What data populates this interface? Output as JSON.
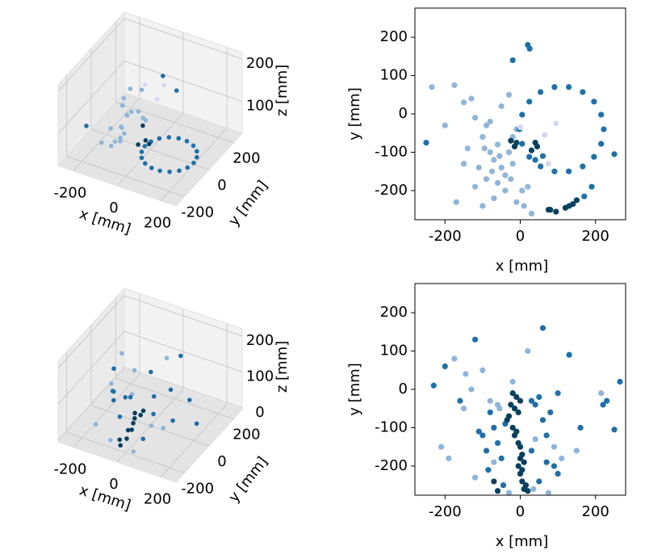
{
  "chart_data": [
    {
      "type": "scatter3d",
      "xlabel": "x [mm]",
      "ylabel": "y [mm]",
      "zlabel": "z [mm]",
      "xlim": [
        -270,
        270
      ],
      "ylim": [
        -270,
        270
      ],
      "zlim": [
        25,
        215
      ],
      "xticks": [
        -200,
        0,
        200
      ],
      "yticks": [
        -200,
        0,
        200
      ],
      "zticks": [
        100,
        200
      ],
      "grid": true,
      "series": [
        {
          "color": "#8fb5d9",
          "x": [
            -150,
            -120,
            -100,
            -80,
            -60,
            -40,
            -20,
            -100,
            -60,
            -30,
            -130,
            -90,
            -50,
            -10,
            -70,
            -160,
            -110,
            -40,
            -80,
            -20
          ],
          "y": [
            40,
            -10,
            -60,
            -100,
            -80,
            -140,
            -60,
            -140,
            -180,
            -100,
            -90,
            -30,
            20,
            -40,
            -120,
            70,
            -200,
            -160,
            -20,
            0
          ],
          "z": [
            90,
            110,
            80,
            70,
            120,
            100,
            130,
            60,
            90,
            140,
            80,
            100,
            150,
            110,
            70,
            95,
            85,
            120,
            160,
            90
          ]
        },
        {
          "color": "#1f6fa8",
          "x": [
            222,
            215,
            196,
            166,
            129,
            91,
            54,
            24,
            5,
            -2,
            5,
            24,
            54,
            91,
            129,
            166,
            196,
            215,
            20,
            -20,
            -250
          ],
          "y": [
            -40,
            -2,
            32,
            57,
            70,
            70,
            57,
            32,
            -2,
            -40,
            -78,
            -112,
            -137,
            -150,
            -150,
            -137,
            -112,
            -78,
            180,
            140,
            -75
          ],
          "z": [
            45,
            45,
            45,
            45,
            45,
            45,
            45,
            45,
            45,
            45,
            45,
            45,
            45,
            45,
            45,
            45,
            45,
            45,
            110,
            150,
            60
          ]
        },
        {
          "color": "#08405f",
          "x": [
            -10,
            40,
            30,
            0
          ],
          "y": [
            -80,
            -80,
            -90,
            -60
          ],
          "z": [
            60,
            70,
            80,
            100
          ]
        },
        {
          "color": "#d5d8ee",
          "x": [
            0,
            60,
            80
          ],
          "y": [
            -40,
            -50,
            -30
          ],
          "z": [
            190,
            170,
            200
          ]
        }
      ]
    },
    {
      "type": "scatter",
      "xlabel": "x [mm]",
      "ylabel": "y [mm]",
      "xlim": [
        -280,
        280
      ],
      "ylim": [
        -276,
        276
      ],
      "xticks": [
        -200,
        0,
        200
      ],
      "yticks": [
        -200,
        -100,
        0,
        100,
        200
      ],
      "series": [
        {
          "color": "#8fb5d9",
          "x": [
            -235,
            -175,
            -150,
            -130,
            -120,
            -100,
            -90,
            -80,
            -70,
            -60,
            -50,
            -40,
            -30,
            -20,
            -10,
            -110,
            -90,
            -60,
            -40,
            -70,
            -150,
            -170,
            -120,
            -100,
            -80,
            -50,
            -30,
            -20,
            -10,
            10,
            30,
            20,
            -140,
            -55,
            -75,
            -95,
            -25,
            5,
            -200
          ],
          "y": [
            70,
            75,
            30,
            40,
            -10,
            -60,
            -30,
            -100,
            -120,
            -80,
            -140,
            -160,
            -100,
            -60,
            -40,
            -140,
            -170,
            -180,
            -200,
            -220,
            -130,
            -230,
            -190,
            -240,
            -20,
            20,
            50,
            -130,
            -230,
            -240,
            -260,
            -190,
            -90,
            -110,
            -150,
            -90,
            -170,
            -200,
            -30
          ]
        },
        {
          "color": "#1f6fa8",
          "x": [
            222,
            215,
            196,
            166,
            129,
            91,
            54,
            24,
            5,
            -2,
            5,
            24,
            54,
            91,
            129,
            166,
            196,
            215,
            190,
            170,
            60,
            40,
            20,
            25,
            -250,
            250,
            -20
          ],
          "y": [
            -40,
            -2,
            32,
            57,
            70,
            70,
            57,
            32,
            -2,
            -40,
            -78,
            -112,
            -137,
            -150,
            -150,
            -137,
            -112,
            -78,
            -190,
            -215,
            -110,
            -120,
            180,
            170,
            -75,
            -105,
            140
          ]
        },
        {
          "color": "#08405f",
          "x": [
            -10,
            -15,
            40,
            45,
            30,
            140,
            130,
            120,
            150,
            80,
            95,
            -25,
            75
          ],
          "y": [
            -75,
            -85,
            -75,
            -85,
            -95,
            -235,
            -240,
            -245,
            -225,
            -250,
            -255,
            -70,
            -250
          ]
        },
        {
          "color": "#d5d8ee",
          "x": [
            65,
            0,
            95,
            75
          ],
          "y": [
            -55,
            -35,
            -25,
            -130
          ]
        }
      ]
    },
    {
      "type": "scatter3d",
      "xlabel": "x [mm]",
      "ylabel": "y [mm]",
      "zlabel": "z [mm]",
      "xlim": [
        -270,
        270
      ],
      "ylim": [
        -270,
        270
      ],
      "zlim": [
        -5,
        220
      ],
      "xticks": [
        -200,
        0,
        200
      ],
      "yticks": [
        -200,
        0,
        200
      ],
      "zticks": [
        0,
        100,
        200
      ],
      "grid": true,
      "series": [
        {
          "color": "#8fb5d9",
          "x": [
            -175,
            -100,
            -55,
            20,
            90,
            -150,
            -120,
            75,
            150,
            -30
          ],
          "y": [
            80,
            50,
            -50,
            100,
            -150,
            -50,
            -230,
            -270,
            -160,
            -270
          ],
          "z": [
            130,
            110,
            90,
            150,
            70,
            100,
            60,
            40,
            80,
            50
          ]
        },
        {
          "color": "#1f6fa8",
          "x": [
            -80,
            -60,
            40,
            60,
            80,
            -100,
            100,
            130,
            160,
            -150,
            -200,
            230,
            -110,
            50,
            -40,
            20
          ],
          "y": [
            -60,
            -140,
            -40,
            -80,
            -200,
            -120,
            -10,
            90,
            -100,
            -30,
            60,
            -30,
            -110,
            160,
            -90,
            -30
          ],
          "z": [
            80,
            60,
            100,
            70,
            50,
            90,
            120,
            60,
            80,
            70,
            90,
            60,
            110,
            140,
            100,
            160
          ]
        },
        {
          "color": "#08405f",
          "x": [
            -20,
            -10,
            -15,
            0,
            5,
            -5,
            10,
            -25,
            0,
            -10
          ],
          "y": [
            -20,
            -60,
            -100,
            -150,
            -200,
            -240,
            -260,
            -80,
            -180,
            -120
          ],
          "z": [
            40,
            45,
            50,
            40,
            35,
            45,
            40,
            55,
            50,
            45
          ]
        }
      ]
    },
    {
      "type": "scatter",
      "xlabel": "x [mm]",
      "ylabel": "y [mm]",
      "xlim": [
        -280,
        280
      ],
      "ylim": [
        -276,
        276
      ],
      "xticks": [
        -200,
        0,
        200
      ],
      "yticks": [
        -200,
        -100,
        0,
        100,
        200
      ],
      "series": [
        {
          "color": "#8fb5d9",
          "x": [
            -175,
            -145,
            -100,
            -80,
            -55,
            -20,
            20,
            40,
            90,
            -150,
            -190,
            -120,
            110,
            75,
            -60,
            -130,
            150,
            215,
            -210,
            -30,
            35,
            -70
          ],
          "y": [
            80,
            40,
            50,
            -30,
            -50,
            20,
            100,
            -130,
            -150,
            -50,
            -180,
            -230,
            -180,
            -270,
            -40,
            0,
            -160,
            -10,
            -150,
            -270,
            -260,
            -190
          ]
        },
        {
          "color": "#1f6fa8",
          "x": [
            -80,
            -70,
            -60,
            -50,
            -90,
            40,
            50,
            60,
            70,
            80,
            90,
            30,
            -100,
            -85,
            -45,
            50,
            70,
            100,
            -120,
            -160,
            130,
            160,
            -200,
            -230,
            230,
            265,
            250,
            220,
            -110,
            60,
            100,
            -40,
            30
          ],
          "y": [
            -60,
            -100,
            -140,
            -180,
            -160,
            -40,
            -20,
            -80,
            -120,
            -60,
            -200,
            -160,
            -120,
            -210,
            -250,
            -240,
            -190,
            -10,
            130,
            -30,
            90,
            -100,
            60,
            10,
            -30,
            20,
            -105,
            -40,
            -110,
            160,
            -220,
            -90,
            -30
          ]
        },
        {
          "color": "#08405f",
          "x": [
            -20,
            -10,
            -25,
            -15,
            -30,
            -5,
            -35,
            0,
            -20,
            -10,
            -15,
            0,
            5,
            10,
            -5,
            0,
            5,
            10,
            15,
            0,
            -5,
            5,
            20,
            -60,
            -70
          ],
          "y": [
            -10,
            -20,
            -40,
            -50,
            -70,
            -60,
            -80,
            -30,
            -100,
            -110,
            -120,
            -150,
            -170,
            -190,
            -200,
            -220,
            -240,
            -260,
            -250,
            -180,
            -140,
            -210,
            -265,
            -265,
            -240
          ]
        }
      ]
    }
  ]
}
